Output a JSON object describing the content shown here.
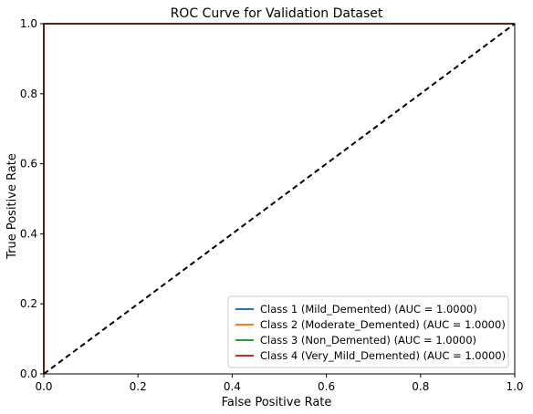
{
  "chart_data": {
    "type": "line",
    "title": "ROC Curve for Validation Dataset",
    "xlabel": "False Positive Rate",
    "ylabel": "True Positive Rate",
    "xlim": [
      0.0,
      1.0
    ],
    "ylim": [
      0.0,
      1.0
    ],
    "x_ticks": [
      "0.0",
      "0.2",
      "0.4",
      "0.6",
      "0.8",
      "1.0"
    ],
    "y_ticks": [
      "0.0",
      "0.2",
      "0.4",
      "0.6",
      "0.8",
      "1.0"
    ],
    "grid": false,
    "legend_position": "bottom-right",
    "series": [
      {
        "name": "Class 1 (Mild_Demented) (AUC = 1.0000)",
        "color": "#1f77b4",
        "x": [
          0,
          0,
          1
        ],
        "y": [
          0,
          1,
          1
        ]
      },
      {
        "name": "Class 2 (Moderate_Demented) (AUC = 1.0000)",
        "color": "#ff7f0e",
        "x": [
          0,
          0,
          1
        ],
        "y": [
          0,
          1,
          1
        ]
      },
      {
        "name": "Class 3 (Non_Demented) (AUC = 1.0000)",
        "color": "#2ca02c",
        "x": [
          0,
          0,
          1
        ],
        "y": [
          0,
          1,
          1
        ]
      },
      {
        "name": "Class 4 (Very_Mild_Demented) (AUC = 1.0000)",
        "color": "#d62728",
        "x": [
          0,
          0,
          1
        ],
        "y": [
          0,
          1,
          1
        ]
      }
    ],
    "reference_line": {
      "style": "dashed",
      "color": "#000000",
      "x": [
        0,
        1
      ],
      "y": [
        0,
        1
      ]
    }
  }
}
